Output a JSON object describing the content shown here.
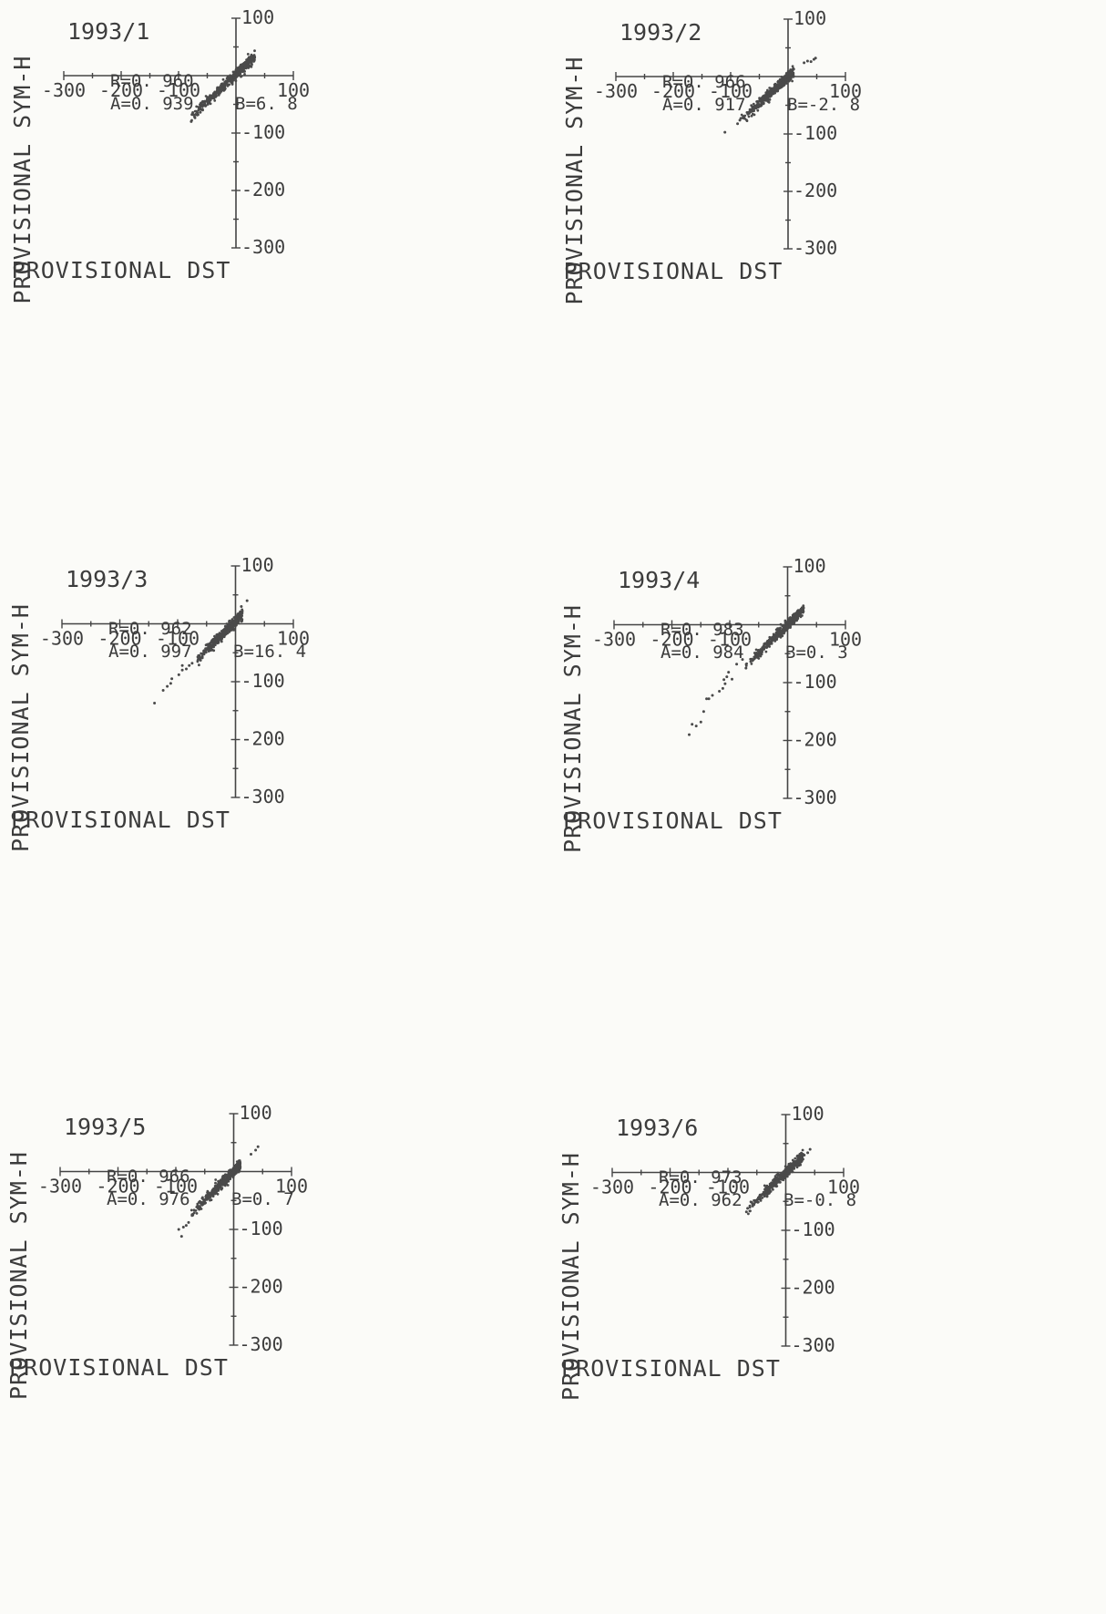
{
  "chart_data": [
    {
      "type": "scatter",
      "title": "1993/1",
      "stats": {
        "r": "R=0. 960",
        "a": "A=0. 939",
        "b": "B=6. 8"
      },
      "slope": 0.939,
      "intercept": 6.8,
      "scatter_x": [
        -80,
        33
      ],
      "spread": 4,
      "outliers": [
        [
          -78,
          -80
        ],
        [
          -72,
          -72
        ],
        [
          -66,
          -68
        ],
        [
          -62,
          -64
        ],
        [
          -58,
          -60
        ],
        [
          -55,
          -52
        ]
      ],
      "xlabel": "PROVISIONAL DST",
      "ylabel": "PROVISIONAL SYM-H",
      "xlim": [
        -300,
        100
      ],
      "ylim": [
        -300,
        100
      ],
      "x_ticks": [
        -300,
        -200,
        -100,
        100
      ],
      "y_ticks": [
        100,
        -100,
        -200,
        -300
      ],
      "grid": false
    },
    {
      "type": "scatter",
      "title": "1993/2",
      "stats": {
        "r": "R=0. 966",
        "a": "A=0. 917",
        "b": "B=-2. 8"
      },
      "slope": 0.917,
      "intercept": -2.8,
      "scatter_x": [
        -85,
        10
      ],
      "spread": 4,
      "outliers": [
        [
          -110,
          -97
        ],
        [
          -88,
          -82
        ],
        [
          -84,
          -76
        ],
        [
          -78,
          -72
        ],
        [
          28,
          24
        ],
        [
          34,
          27
        ],
        [
          40,
          26
        ],
        [
          45,
          30
        ],
        [
          48,
          32
        ]
      ],
      "xlabel": "PROVISIONAL DST",
      "ylabel": "PROVISIONAL SYM-H",
      "xlim": [
        -300,
        100
      ],
      "ylim": [
        -300,
        100
      ],
      "x_ticks": [
        -300,
        -200,
        -100,
        100
      ],
      "y_ticks": [
        100,
        -100,
        -200,
        -300
      ],
      "grid": false
    },
    {
      "type": "scatter",
      "title": "1993/3",
      "stats": {
        "r": "R=0. 962",
        "a": "A=0. 997",
        "b": "B=16. 4"
      },
      "slope": 0.997,
      "intercept": 16.4,
      "scatter_x": [
        -70,
        12
      ],
      "spread": 4,
      "outliers": [
        [
          -140,
          -137
        ],
        [
          -125,
          -115
        ],
        [
          -118,
          -108
        ],
        [
          -112,
          -103
        ],
        [
          -110,
          -95
        ],
        [
          -98,
          -88
        ],
        [
          -92,
          -80
        ],
        [
          -85,
          -78
        ],
        [
          -80,
          -72
        ],
        [
          -92,
          -72
        ],
        [
          -75,
          -68
        ],
        [
          20,
          40
        ],
        [
          10,
          30
        ]
      ],
      "xlabel": "PROVISIONAL DST",
      "ylabel": "PROVISIONAL SYM-H",
      "xlim": [
        -300,
        100
      ],
      "ylim": [
        -300,
        100
      ],
      "x_ticks": [
        -300,
        -200,
        -100,
        100
      ],
      "y_ticks": [
        100,
        -100,
        -200,
        -300
      ],
      "grid": false
    },
    {
      "type": "scatter",
      "title": "1993/4",
      "stats": {
        "r": "R=0. 983",
        "a": "A=0. 984",
        "b": "B=0. 3"
      },
      "slope": 0.984,
      "intercept": 0.3,
      "scatter_x": [
        -75,
        28
      ],
      "spread": 3.5,
      "outliers": [
        [
          -170,
          -190
        ],
        [
          -165,
          -172
        ],
        [
          -158,
          -175
        ],
        [
          -150,
          -168
        ],
        [
          -145,
          -150
        ],
        [
          -140,
          -128
        ],
        [
          -136,
          -128
        ],
        [
          -130,
          -122
        ],
        [
          -118,
          -115
        ],
        [
          -112,
          -110
        ],
        [
          -108,
          -102
        ],
        [
          -110,
          -95
        ],
        [
          -105,
          -90
        ],
        [
          -102,
          -82
        ],
        [
          -96,
          -94
        ],
        [
          -88,
          -68
        ],
        [
          -72,
          -75
        ],
        [
          -78,
          -60
        ]
      ],
      "xlabel": "PROVISIONAL DST",
      "ylabel": "PROVISIONAL SYM-H",
      "xlim": [
        -300,
        100
      ],
      "ylim": [
        -300,
        100
      ],
      "x_ticks": [
        -300,
        -200,
        -100,
        100
      ],
      "y_ticks": [
        100,
        -100,
        -200,
        -300
      ],
      "grid": false
    },
    {
      "type": "scatter",
      "title": "1993/5",
      "stats": {
        "r": "R=0. 966",
        "a": "A=0. 976",
        "b": "B=0. 7"
      },
      "slope": 0.976,
      "intercept": 0.7,
      "scatter_x": [
        -75,
        12
      ],
      "spread": 4,
      "outliers": [
        [
          -95,
          -100
        ],
        [
          -90,
          -112
        ],
        [
          -87,
          -96
        ],
        [
          -82,
          -93
        ],
        [
          -78,
          -88
        ],
        [
          -72,
          -76
        ],
        [
          30,
          30
        ],
        [
          38,
          37
        ],
        [
          42,
          43
        ]
      ],
      "xlabel": "PROVISIONAL DST",
      "ylabel": "PROVISIONAL SYM-H",
      "xlim": [
        -300,
        100
      ],
      "ylim": [
        -300,
        100
      ],
      "x_ticks": [
        -300,
        -200,
        -100,
        100
      ],
      "y_ticks": [
        100,
        -100,
        -200,
        -300
      ],
      "grid": false
    },
    {
      "type": "scatter",
      "title": "1993/6",
      "stats": {
        "r": "R=0. 973",
        "a": "A=0. 962",
        "b": "B=-0. 8"
      },
      "slope": 0.962,
      "intercept": -0.8,
      "scatter_x": [
        -68,
        30
      ],
      "spread": 4,
      "outliers": [
        [
          -68,
          -68
        ],
        [
          -66,
          -62
        ],
        [
          -62,
          -58
        ],
        [
          32,
          30
        ],
        [
          38,
          34
        ],
        [
          42,
          40
        ]
      ],
      "xlabel": "PROVISIONAL DST",
      "ylabel": "PROVISIONAL SYM-H",
      "xlim": [
        -300,
        100
      ],
      "ylim": [
        -300,
        100
      ],
      "x_ticks": [
        -300,
        -200,
        -100,
        100
      ],
      "y_ticks": [
        100,
        -100,
        -200,
        -300
      ],
      "grid": false
    }
  ]
}
